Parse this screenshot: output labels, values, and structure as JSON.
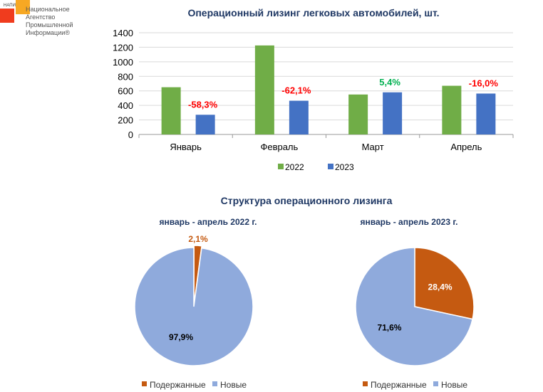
{
  "logo": {
    "abbr": "НАПИ",
    "text": [
      "Национальное",
      "Агентство",
      "Промышленной",
      "Информации®"
    ]
  },
  "chart_data": [
    {
      "type": "bar",
      "title": "Операционный лизинг легковых автомобилей, шт.",
      "categories": [
        "Январь",
        "Февраль",
        "Март",
        "Апрель"
      ],
      "series": [
        {
          "name": "2022",
          "color": "#70ad47",
          "values": [
            650,
            1225,
            550,
            670
          ]
        },
        {
          "name": "2023",
          "color": "#4472c4",
          "values": [
            271,
            464,
            580,
            563
          ]
        }
      ],
      "labels": [
        "-58,3%",
        "-62,1%",
        "5,4%",
        "-16,0%"
      ],
      "label_colors": [
        "#ff0000",
        "#ff0000",
        "#00b050",
        "#ff0000"
      ],
      "ylim": [
        0,
        1400
      ],
      "yticks": [
        0,
        200,
        400,
        600,
        800,
        1000,
        1200,
        1400
      ],
      "grid": true,
      "legend": "bottom"
    },
    {
      "type": "pie",
      "title": "январь - апрель 2022 г.",
      "slices": [
        {
          "name": "Подержанные",
          "value": 2.1,
          "label": "2,1%",
          "color": "#c55a11"
        },
        {
          "name": "Новые",
          "value": 97.9,
          "label": "97,9%",
          "color": "#8faadc"
        }
      ],
      "legend": "bottom"
    },
    {
      "type": "pie",
      "title": "январь - апрель 2023 г.",
      "slices": [
        {
          "name": "Подержанные",
          "value": 28.4,
          "label": "28,4%",
          "color": "#c55a11"
        },
        {
          "name": "Новые",
          "value": 71.6,
          "label": "71,6%",
          "color": "#8faadc"
        }
      ],
      "legend": "bottom"
    }
  ],
  "pies_title": "Структура  операционного лизинга"
}
